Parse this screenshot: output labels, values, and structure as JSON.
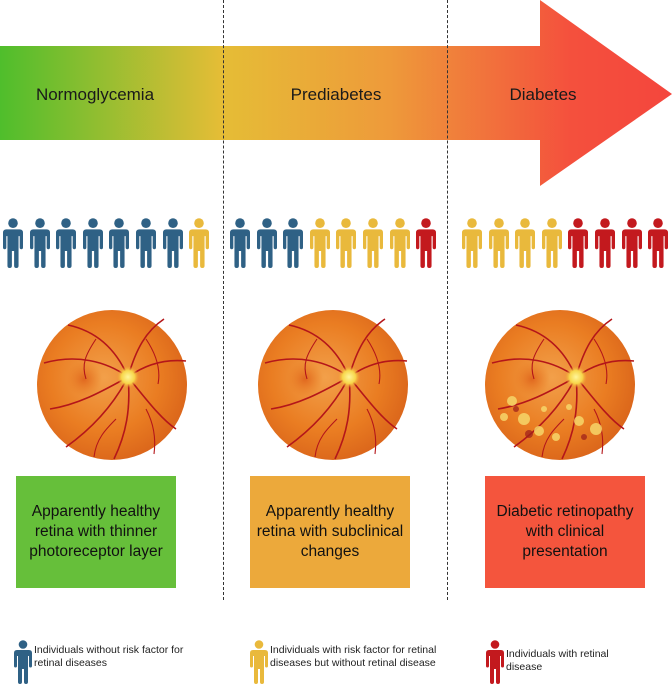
{
  "stages": [
    {
      "label": "Normoglycemia",
      "description": "Apparently healthy retina with thinner photoreceptor layer",
      "color": "#66bf3a",
      "people": [
        "blue",
        "blue",
        "blue",
        "blue",
        "blue",
        "blue",
        "blue",
        "yellow"
      ]
    },
    {
      "label": "Prediabetes",
      "description": "Apparently healthy retina with subclinical changes",
      "color": "#eca93b",
      "people": [
        "blue",
        "blue",
        "blue",
        "yellow",
        "yellow",
        "yellow",
        "yellow",
        "red"
      ]
    },
    {
      "label": "Diabetes",
      "description": "Diabetic retinopathy with clinical presentation",
      "color": "#f4553d",
      "people": [
        "yellow",
        "yellow",
        "yellow",
        "yellow",
        "red",
        "red",
        "red",
        "red"
      ]
    }
  ],
  "person_colors": {
    "blue": "#2f6185",
    "yellow": "#e9b93c",
    "red": "#c3191e"
  },
  "legend": [
    {
      "text": "Individuals without risk factor for retinal diseases",
      "color": "blue"
    },
    {
      "text": "Individuals with risk factor for retinal diseases but without retinal disease",
      "color": "yellow"
    },
    {
      "text": "Individuals with retinal disease",
      "color": "red"
    }
  ]
}
